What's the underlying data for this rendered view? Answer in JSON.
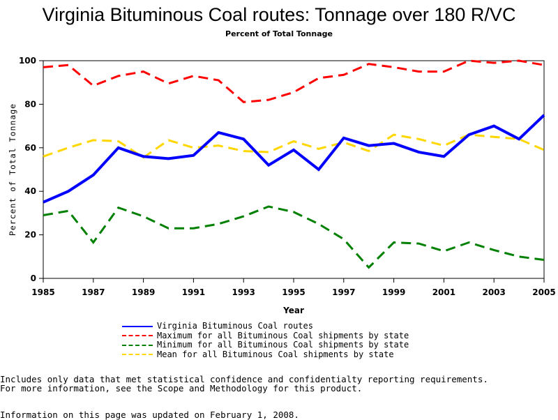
{
  "chart_data": {
    "type": "line",
    "title": "Virginia Bituminous Coal routes: Tonnage over 180 R/VC",
    "subtitle": "Percent of Total Tonnage",
    "xlabel": "Year",
    "ylabel": "Percent of Total Tonnage",
    "xlim": [
      1985,
      2005
    ],
    "ylim": [
      0,
      100
    ],
    "xticks": [
      "1985",
      "1987",
      "1989",
      "1991",
      "1993",
      "1995",
      "1997",
      "1999",
      "2001",
      "2003",
      "2005"
    ],
    "yticks": [
      "0",
      "20",
      "40",
      "60",
      "80",
      "100"
    ],
    "x": [
      1985,
      1986,
      1987,
      1988,
      1989,
      1990,
      1991,
      1992,
      1993,
      1994,
      1995,
      1996,
      1997,
      1998,
      1999,
      2000,
      2001,
      2002,
      2003,
      2004,
      2005
    ],
    "series": [
      {
        "name": "Virginia Bituminous Coal routes",
        "color": "#0000ff",
        "style": "solid",
        "values": [
          35,
          40,
          47.5,
          60,
          56,
          55,
          56.5,
          67,
          64,
          52,
          59,
          50,
          64.5,
          61,
          62,
          58,
          56,
          66,
          70,
          64,
          75
        ]
      },
      {
        "name": "Maximum for all Bituminous Coal shipments by state",
        "color": "#ff0000",
        "style": "dashed",
        "values": [
          97,
          98,
          88.5,
          93,
          95,
          89.5,
          93,
          91,
          81,
          82,
          85.5,
          92,
          93.5,
          98.5,
          97,
          95,
          95,
          100,
          99,
          100,
          98
        ]
      },
      {
        "name": "Minimum for all Bituminous Coal shipments by state",
        "color": "#008000",
        "style": "dashed",
        "values": [
          29,
          31,
          16.5,
          32.5,
          28.5,
          23,
          23,
          25,
          28.5,
          33,
          30.5,
          25,
          18,
          5,
          16.5,
          16,
          12.5,
          16.5,
          13,
          10,
          8.5
        ]
      },
      {
        "name": "Mean for all Bituminous Coal shipments by state",
        "color": "#ffd700",
        "style": "dashed",
        "values": [
          56,
          60,
          63.5,
          63,
          55.5,
          63.5,
          60,
          61,
          58.5,
          58,
          63,
          59.5,
          62.5,
          58.5,
          66,
          64,
          61,
          66,
          65,
          64,
          59
        ]
      }
    ],
    "legend_position": "bottom"
  },
  "notes": {
    "line1": "Includes only data that met statistical confidence and confidentialty reporting requirements.",
    "line2": "For more information, see the Scope and Methodology for this product.",
    "updated": "Information on this page was updated on February 1, 2008."
  }
}
